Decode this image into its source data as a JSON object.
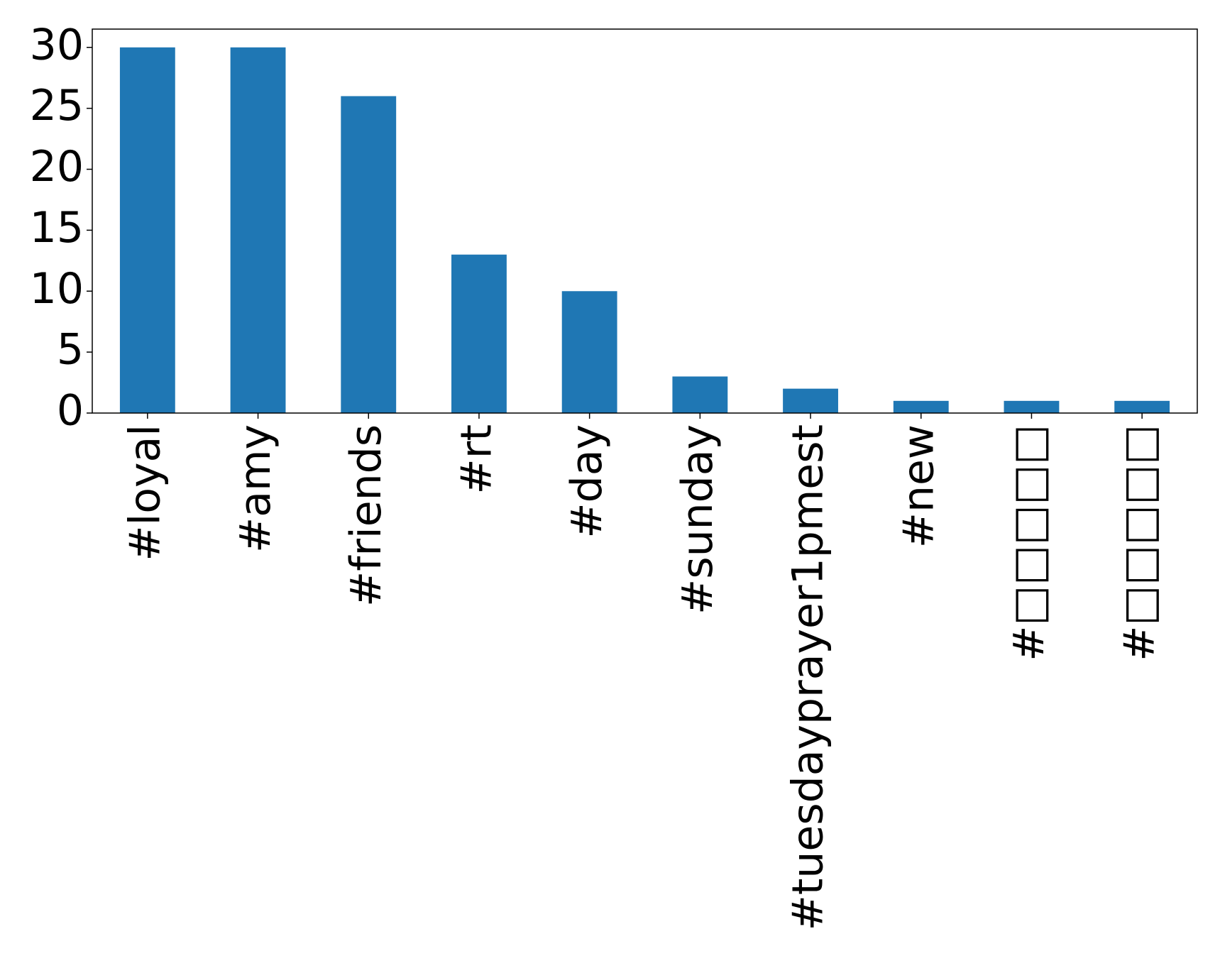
{
  "chart_data": {
    "type": "bar",
    "categories": [
      "#loyal",
      "#amy",
      "#friends",
      "#rt",
      "#day",
      "#sunday",
      "#tuesdayprayer1pmest",
      "#new",
      "#□□□□□",
      "#□□□□□"
    ],
    "values": [
      30,
      30,
      26,
      13,
      10,
      3,
      2,
      1,
      1,
      1
    ],
    "color": "#1f77b4",
    "ylim": [
      0,
      31.5
    ],
    "yticks": [
      0,
      5,
      10,
      15,
      20,
      25,
      30
    ],
    "grid": false
  }
}
